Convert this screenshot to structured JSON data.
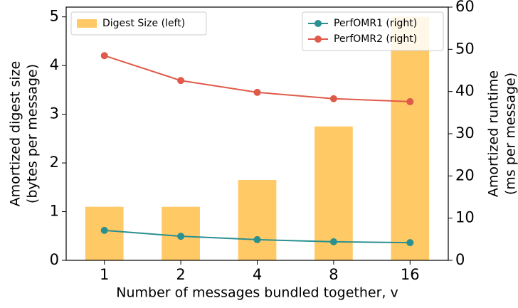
{
  "chart_data": {
    "type": "combo",
    "xlabel": "Number of messages bundled together, v",
    "ylabel": [
      "Amortized digest size",
      "(bytes per message)"
    ],
    "y2label": [
      "Amortized runtime",
      "(ms per message)"
    ],
    "categories": [
      "1",
      "2",
      "4",
      "8",
      "16"
    ],
    "ylim": [
      0,
      5.2
    ],
    "yticks": [
      0,
      1,
      2,
      3,
      4,
      5
    ],
    "y2lim": [
      0,
      60
    ],
    "y2ticks": [
      0,
      10,
      20,
      30,
      40,
      50,
      60
    ],
    "series": [
      {
        "name": "Digest Size (left)",
        "kind": "bar",
        "color": "#ffc966",
        "axis": "y",
        "legend": "upper left",
        "values": [
          1.1,
          1.1,
          1.65,
          2.75,
          5.0
        ]
      },
      {
        "name": "PerfOMR1 (right)",
        "kind": "line",
        "color": "#2a9090",
        "axis": "y2",
        "legend": "upper right",
        "values": [
          7.1,
          5.7,
          4.9,
          4.4,
          4.2
        ]
      },
      {
        "name": "PerfOMR2 (right)",
        "kind": "line",
        "color": "#e05a4a",
        "axis": "y2",
        "legend": "upper right",
        "values": [
          48.5,
          42.6,
          39.8,
          38.3,
          37.6
        ]
      }
    ]
  }
}
